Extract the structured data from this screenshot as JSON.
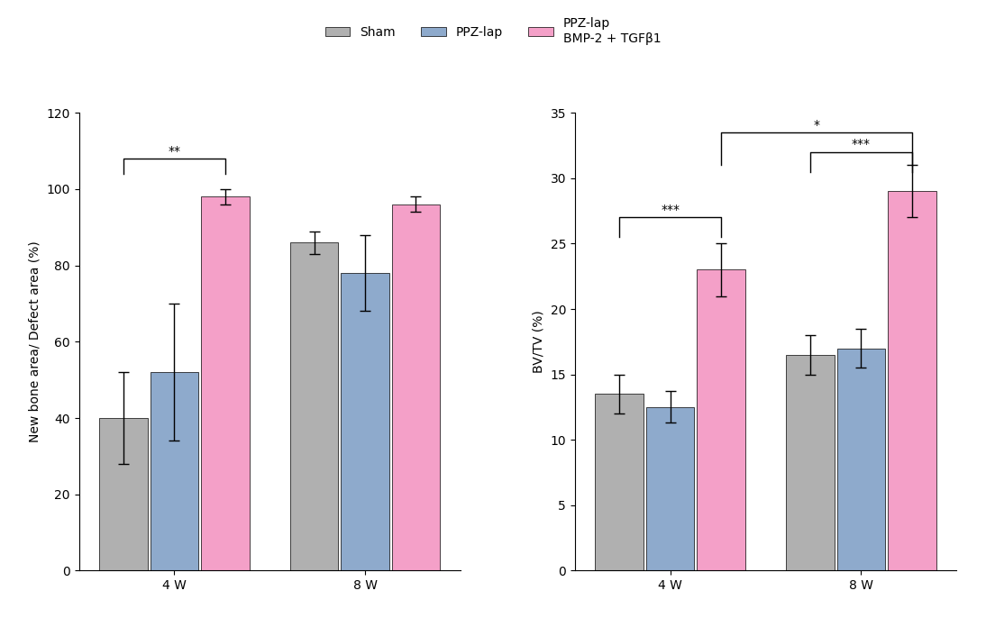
{
  "chart_data": [
    {
      "type": "bar",
      "ylabel": "New bone area/ Defect area (%)",
      "categories": [
        "4 W",
        "8 W"
      ],
      "series": [
        {
          "name": "Sham",
          "color": "#b0b0b0",
          "values": [
            40,
            86
          ],
          "errors": [
            12,
            3
          ]
        },
        {
          "name": "PPZ-lap",
          "color": "#8eaacc",
          "values": [
            52,
            78
          ],
          "errors": [
            18,
            10
          ]
        },
        {
          "name": "PPZ-lap\nBMP-2 + TGFβ1",
          "color": "#f4a0c8",
          "values": [
            98,
            96
          ],
          "errors": [
            2,
            2
          ]
        }
      ],
      "ylim": [
        0,
        120
      ],
      "yticks": [
        0,
        20,
        40,
        60,
        80,
        100,
        120
      ],
      "legend": "upper center",
      "annotations": [
        {
          "text": "**",
          "from": {
            "category_index": 0,
            "series_index": 0
          },
          "to": {
            "category_index": 0,
            "series_index": 2
          },
          "y": 108,
          "y_line": 104
        }
      ]
    },
    {
      "type": "bar",
      "ylabel": "BV/TV (%)",
      "categories": [
        "4 W",
        "8 W"
      ],
      "series": [
        {
          "name": "Sham",
          "color": "#b0b0b0",
          "values": [
            13.5,
            16.5
          ],
          "errors": [
            1.5,
            1.5
          ]
        },
        {
          "name": "PPZ-lap",
          "color": "#8eaacc",
          "values": [
            12.5,
            17.0
          ],
          "errors": [
            1.2,
            1.5
          ]
        },
        {
          "name": "PPZ-lap\nBMP-2 + TGFβ1",
          "color": "#f4a0c8",
          "values": [
            23.0,
            29.0
          ],
          "errors": [
            2.0,
            2.0
          ]
        }
      ],
      "ylim": [
        0,
        35
      ],
      "yticks": [
        0,
        5,
        10,
        15,
        20,
        25,
        30,
        35
      ],
      "legend": "upper center",
      "annotations": [
        {
          "text": "***",
          "from": {
            "category_index": 0,
            "series_index": 0
          },
          "to": {
            "category_index": 0,
            "series_index": 2
          },
          "y": 27,
          "y_line": 25.5
        },
        {
          "text": "***",
          "from": {
            "category_index": 1,
            "series_index": 0
          },
          "to": {
            "category_index": 1,
            "series_index": 2
          },
          "y": 32,
          "y_line": 30.5
        },
        {
          "text": "*",
          "from": {
            "category_index": 0,
            "series_index": 2
          },
          "to": {
            "category_index": 1,
            "series_index": 2
          },
          "y": 33.5,
          "y_line": 31
        }
      ]
    }
  ]
}
